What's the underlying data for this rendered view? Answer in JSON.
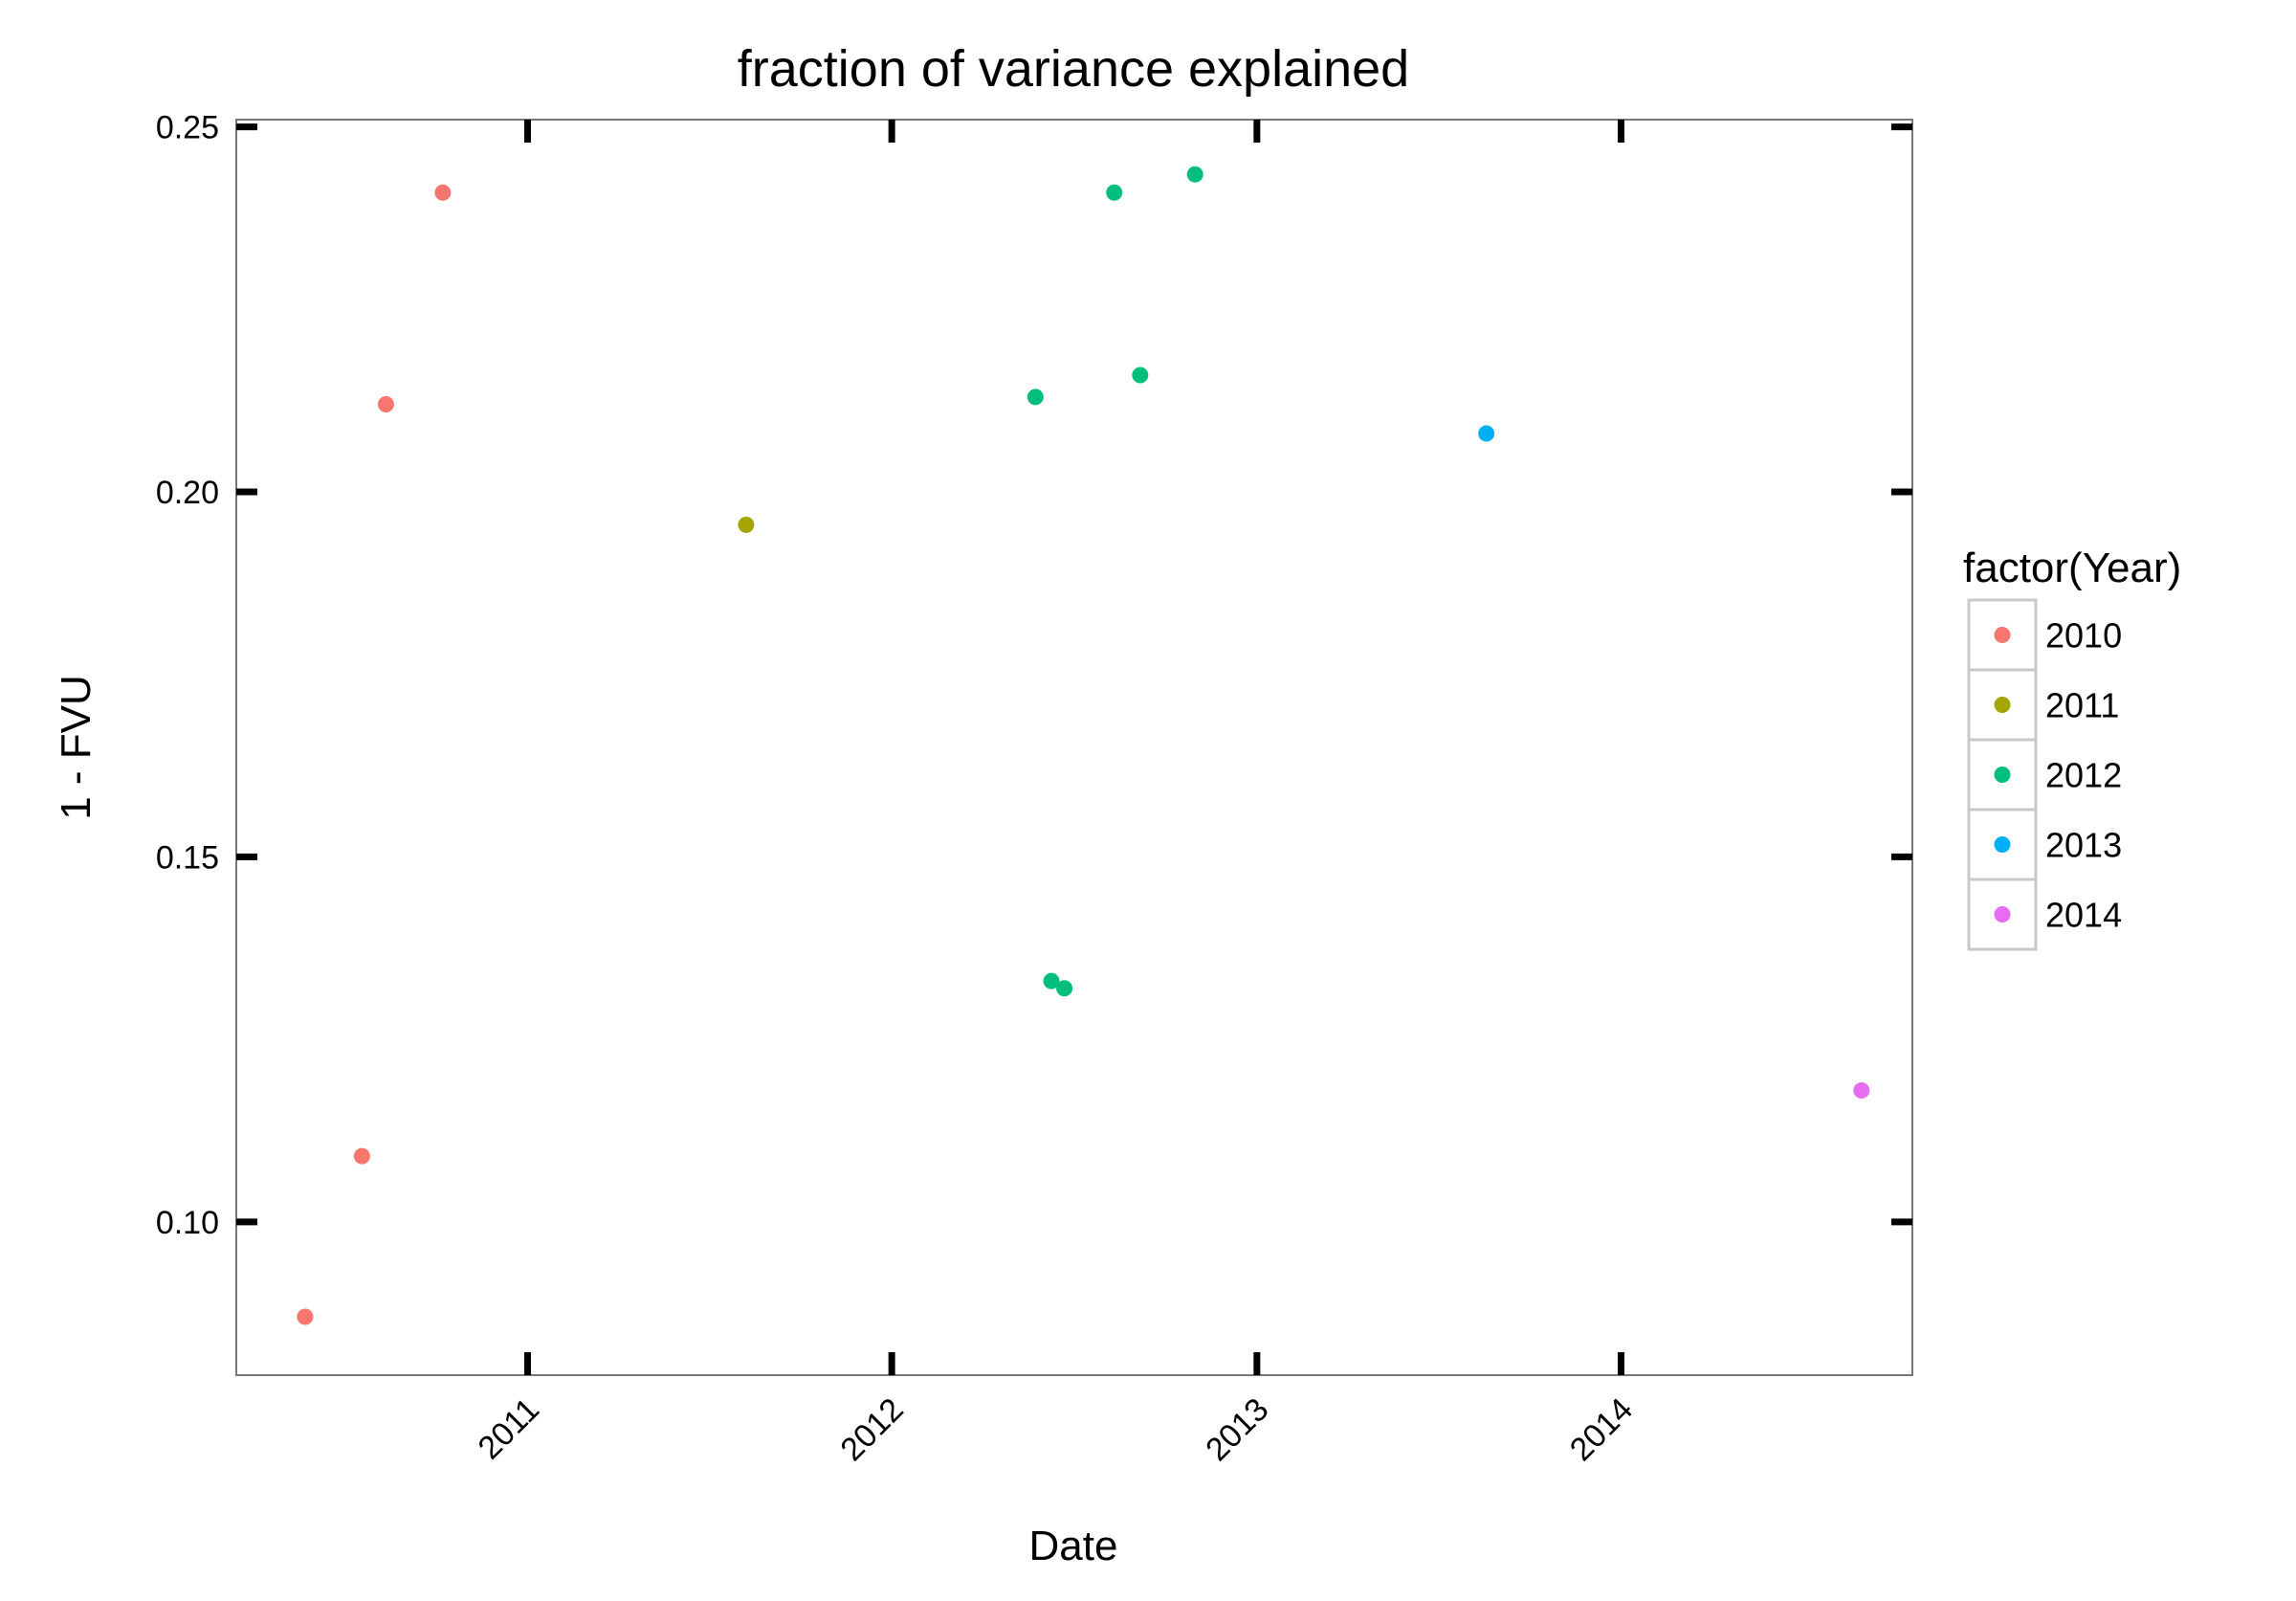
{
  "chart_data": {
    "type": "scatter",
    "title": "fraction of variance explained",
    "xlabel": "Date",
    "ylabel": "1 - FVU",
    "x_is_date": true,
    "xlim": [
      "2010-03-15",
      "2014-10-20"
    ],
    "ylim": [
      0.079,
      0.251
    ],
    "x_ticks": [
      "2011",
      "2012",
      "2013",
      "2014"
    ],
    "y_ticks": [
      "0.10",
      "0.15",
      "0.20",
      "0.25"
    ],
    "grid": false,
    "legend": {
      "title": "factor(Year)",
      "position": "right",
      "entries": [
        "2010",
        "2011",
        "2012",
        "2013",
        "2014"
      ]
    },
    "series": [
      {
        "name": "2010",
        "color": "#F8766D",
        "points": [
          {
            "x": "2010-05-23",
            "y": 0.087
          },
          {
            "x": "2010-07-19",
            "y": 0.109
          },
          {
            "x": "2010-08-12",
            "y": 0.212
          },
          {
            "x": "2010-10-08",
            "y": 0.241
          }
        ]
      },
      {
        "name": "2011",
        "color": "#A3A500",
        "points": [
          {
            "x": "2011-08-08",
            "y": 0.1955
          }
        ]
      },
      {
        "name": "2012",
        "color": "#00BF7D",
        "points": [
          {
            "x": "2012-05-24",
            "y": 0.213
          },
          {
            "x": "2012-06-09",
            "y": 0.133
          },
          {
            "x": "2012-06-22",
            "y": 0.132
          },
          {
            "x": "2012-08-11",
            "y": 0.241
          },
          {
            "x": "2012-09-06",
            "y": 0.216
          },
          {
            "x": "2012-10-31",
            "y": 0.2435
          }
        ]
      },
      {
        "name": "2013",
        "color": "#00B0F6",
        "points": [
          {
            "x": "2013-08-19",
            "y": 0.208
          }
        ]
      },
      {
        "name": "2014",
        "color": "#E76BF3",
        "points": [
          {
            "x": "2014-08-30",
            "y": 0.118
          }
        ]
      }
    ]
  }
}
